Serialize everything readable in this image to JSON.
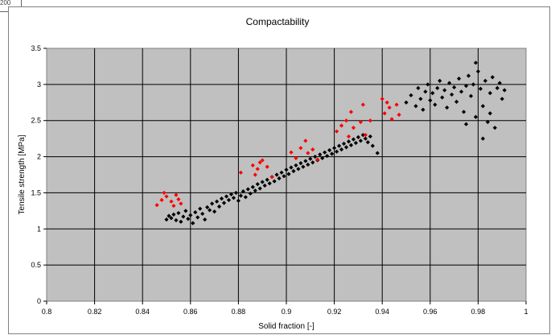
{
  "corner_tick": "200",
  "chart_data": {
    "type": "scatter",
    "title": "Compactability",
    "xlabel": "Solid fraction [-]",
    "ylabel": "Tensile strength [MPa]",
    "xlim": [
      0.8,
      1.0
    ],
    "ylim": [
      0,
      3.5
    ],
    "x_ticks": [
      "0.8",
      "0.82",
      "0.84",
      "0.86",
      "0.88",
      "0.9",
      "0.92",
      "0.94",
      "0.96",
      "0.98",
      "1"
    ],
    "y_ticks": [
      "0",
      "0.5",
      "1",
      "1.5",
      "2",
      "2.5",
      "3",
      "3.5"
    ],
    "grid": true,
    "legend": "none",
    "plot_background": "#c0c0c0",
    "series": [
      {
        "color": "#000000",
        "marker": "diamond",
        "points": [
          [
            0.85,
            1.13
          ],
          [
            0.851,
            1.18
          ],
          [
            0.852,
            1.15
          ],
          [
            0.853,
            1.2
          ],
          [
            0.854,
            1.12
          ],
          [
            0.855,
            1.22
          ],
          [
            0.856,
            1.1
          ],
          [
            0.857,
            1.17
          ],
          [
            0.858,
            1.25
          ],
          [
            0.859,
            1.14
          ],
          [
            0.86,
            1.19
          ],
          [
            0.861,
            1.08
          ],
          [
            0.862,
            1.23
          ],
          [
            0.863,
            1.16
          ],
          [
            0.864,
            1.28
          ],
          [
            0.865,
            1.21
          ],
          [
            0.866,
            1.13
          ],
          [
            0.867,
            1.3
          ],
          [
            0.868,
            1.26
          ],
          [
            0.869,
            1.35
          ],
          [
            0.87,
            1.24
          ],
          [
            0.871,
            1.38
          ],
          [
            0.872,
            1.31
          ],
          [
            0.873,
            1.42
          ],
          [
            0.874,
            1.36
          ],
          [
            0.875,
            1.45
          ],
          [
            0.876,
            1.4
          ],
          [
            0.877,
            1.48
          ],
          [
            0.878,
            1.43
          ],
          [
            0.879,
            1.5
          ],
          [
            0.88,
            1.39
          ],
          [
            0.881,
            1.46
          ],
          [
            0.882,
            1.52
          ],
          [
            0.883,
            1.44
          ],
          [
            0.884,
            1.55
          ],
          [
            0.885,
            1.49
          ],
          [
            0.886,
            1.58
          ],
          [
            0.887,
            1.53
          ],
          [
            0.888,
            1.62
          ],
          [
            0.889,
            1.56
          ],
          [
            0.89,
            1.65
          ],
          [
            0.891,
            1.6
          ],
          [
            0.892,
            1.68
          ],
          [
            0.893,
            1.63
          ],
          [
            0.894,
            1.72
          ],
          [
            0.895,
            1.66
          ],
          [
            0.896,
            1.75
          ],
          [
            0.897,
            1.7
          ],
          [
            0.898,
            1.78
          ],
          [
            0.899,
            1.73
          ],
          [
            0.9,
            1.82
          ],
          [
            0.901,
            1.76
          ],
          [
            0.902,
            1.85
          ],
          [
            0.903,
            1.8
          ],
          [
            0.904,
            1.88
          ],
          [
            0.905,
            1.83
          ],
          [
            0.906,
            1.91
          ],
          [
            0.907,
            1.86
          ],
          [
            0.908,
            1.94
          ],
          [
            0.909,
            1.89
          ],
          [
            0.91,
            1.97
          ],
          [
            0.911,
            1.92
          ],
          [
            0.912,
            2.0
          ],
          [
            0.913,
            1.95
          ],
          [
            0.914,
            2.03
          ],
          [
            0.915,
            1.98
          ],
          [
            0.916,
            2.06
          ],
          [
            0.917,
            2.01
          ],
          [
            0.918,
            2.09
          ],
          [
            0.919,
            2.04
          ],
          [
            0.92,
            2.12
          ],
          [
            0.921,
            2.07
          ],
          [
            0.922,
            2.15
          ],
          [
            0.923,
            2.1
          ],
          [
            0.924,
            2.18
          ],
          [
            0.925,
            2.13
          ],
          [
            0.926,
            2.21
          ],
          [
            0.927,
            2.16
          ],
          [
            0.928,
            2.24
          ],
          [
            0.929,
            2.19
          ],
          [
            0.93,
            2.27
          ],
          [
            0.931,
            2.22
          ],
          [
            0.932,
            2.3
          ],
          [
            0.933,
            2.25
          ],
          [
            0.934,
            2.2
          ],
          [
            0.935,
            2.28
          ],
          [
            0.936,
            2.15
          ],
          [
            0.938,
            2.05
          ],
          [
            0.95,
            2.75
          ],
          [
            0.952,
            2.85
          ],
          [
            0.954,
            2.7
          ],
          [
            0.955,
            2.95
          ],
          [
            0.956,
            2.8
          ],
          [
            0.957,
            2.65
          ],
          [
            0.958,
            2.9
          ],
          [
            0.959,
            3.0
          ],
          [
            0.96,
            2.78
          ],
          [
            0.961,
            2.88
          ],
          [
            0.962,
            2.72
          ],
          [
            0.963,
            2.95
          ],
          [
            0.964,
            3.05
          ],
          [
            0.965,
            2.82
          ],
          [
            0.966,
            2.92
          ],
          [
            0.967,
            2.68
          ],
          [
            0.968,
            3.02
          ],
          [
            0.969,
            2.86
          ],
          [
            0.97,
            2.96
          ],
          [
            0.971,
            2.76
          ],
          [
            0.972,
            3.08
          ],
          [
            0.973,
            2.9
          ],
          [
            0.974,
            2.62
          ],
          [
            0.975,
            2.98
          ],
          [
            0.976,
            3.12
          ],
          [
            0.977,
            2.84
          ],
          [
            0.978,
            3.0
          ],
          [
            0.979,
            2.55
          ],
          [
            0.98,
            3.18
          ],
          [
            0.981,
            2.94
          ],
          [
            0.982,
            2.7
          ],
          [
            0.983,
            3.05
          ],
          [
            0.984,
            2.48
          ],
          [
            0.985,
            2.88
          ],
          [
            0.986,
            3.1
          ],
          [
            0.987,
            2.4
          ],
          [
            0.988,
            2.95
          ],
          [
            0.989,
            3.02
          ],
          [
            0.99,
            2.8
          ],
          [
            0.991,
            2.92
          ],
          [
            0.982,
            2.25
          ],
          [
            0.979,
            3.3
          ],
          [
            0.975,
            2.45
          ],
          [
            0.985,
            2.6
          ]
        ]
      },
      {
        "color": "#ff0000",
        "marker": "diamond",
        "points": [
          [
            0.846,
            1.33
          ],
          [
            0.848,
            1.4
          ],
          [
            0.849,
            1.5
          ],
          [
            0.85,
            1.45
          ],
          [
            0.852,
            1.38
          ],
          [
            0.853,
            1.32
          ],
          [
            0.854,
            1.47
          ],
          [
            0.855,
            1.41
          ],
          [
            0.856,
            1.35
          ],
          [
            0.881,
            1.78
          ],
          [
            0.886,
            1.88
          ],
          [
            0.887,
            1.75
          ],
          [
            0.888,
            1.83
          ],
          [
            0.889,
            1.92
          ],
          [
            0.89,
            1.95
          ],
          [
            0.892,
            1.86
          ],
          [
            0.894,
            1.72
          ],
          [
            0.902,
            2.06
          ],
          [
            0.904,
            1.98
          ],
          [
            0.906,
            2.12
          ],
          [
            0.908,
            2.22
          ],
          [
            0.909,
            2.05
          ],
          [
            0.911,
            2.1
          ],
          [
            0.913,
            1.96
          ],
          [
            0.921,
            2.35
          ],
          [
            0.923,
            2.43
          ],
          [
            0.925,
            2.5
          ],
          [
            0.926,
            2.28
          ],
          [
            0.927,
            2.62
          ],
          [
            0.928,
            2.4
          ],
          [
            0.931,
            2.48
          ],
          [
            0.932,
            2.72
          ],
          [
            0.933,
            2.3
          ],
          [
            0.935,
            2.5
          ],
          [
            0.94,
            2.8
          ],
          [
            0.941,
            2.6
          ],
          [
            0.942,
            2.75
          ],
          [
            0.943,
            2.68
          ],
          [
            0.944,
            2.52
          ],
          [
            0.946,
            2.72
          ],
          [
            0.947,
            2.58
          ]
        ]
      }
    ]
  }
}
